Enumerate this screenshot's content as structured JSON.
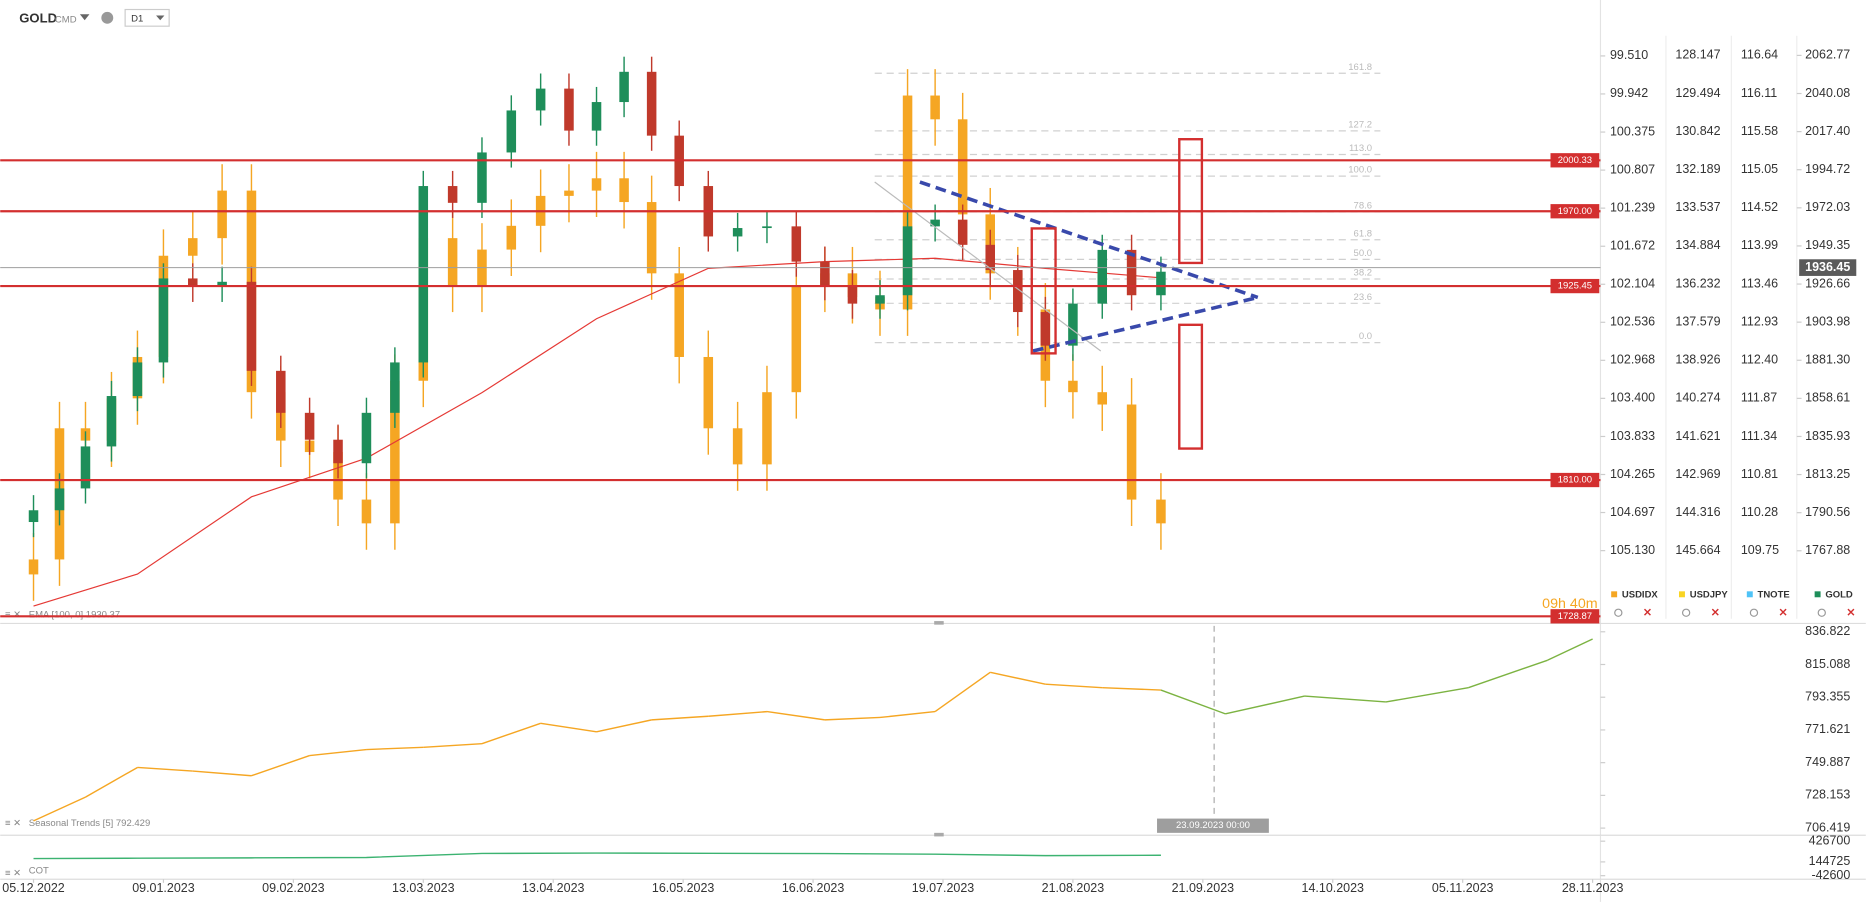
{
  "toolbar": {
    "symbol": "GOLD",
    "market": "CMD",
    "interval": "D1"
  },
  "chart_data": [
    {
      "type": "candlestick",
      "x": [
        "2022-12-05",
        "2022-12-12",
        "2022-12-19",
        "2022-12-26",
        "2023-01-02",
        "2023-01-09",
        "2023-01-16",
        "2023-01-23",
        "2023-01-30",
        "2023-02-06",
        "2023-02-13",
        "2023-02-20",
        "2023-02-27",
        "2023-03-06",
        "2023-03-13",
        "2023-03-20",
        "2023-03-27",
        "2023-04-03",
        "2023-04-10",
        "2023-04-17",
        "2023-04-24",
        "2023-05-01",
        "2023-05-08",
        "2023-05-15",
        "2023-05-22",
        "2023-05-29",
        "2023-06-05",
        "2023-06-12",
        "2023-06-19",
        "2023-06-26",
        "2023-07-03",
        "2023-07-10",
        "2023-07-17",
        "2023-07-24",
        "2023-07-31",
        "2023-08-07",
        "2023-08-14",
        "2023-08-21",
        "2023-08-28",
        "2023-09-04",
        "2023-09-11"
      ],
      "series": [
        {
          "name": "USDIDX",
          "axis": "y2",
          "up_color": "#f5a623",
          "down_color": "#f5a623",
          "open": [
            105.4,
            105.23,
            103.74,
            103.88,
            103.4,
            102.93,
            101.78,
            101.58,
            101.04,
            103.33,
            103.88,
            104.01,
            104.55,
            104.82,
            103.2,
            101.58,
            102.12,
            101.71,
            101.44,
            101.1,
            101.04,
            100.9,
            101.17,
            101.98,
            102.93,
            103.74,
            104.15,
            103.33,
            102.12,
            101.98,
            102.25,
            102.39,
            99.96,
            100.23,
            101.31,
            101.98,
            102.39,
            103.2,
            103.33,
            103.47,
            104.55
          ],
          "high": [
            105.7,
            105.53,
            104.18,
            104.18,
            103.7,
            103.23,
            102.08,
            101.88,
            103.63,
            104.18,
            104.31,
            104.85,
            105.12,
            105.12,
            103.5,
            102.42,
            102.42,
            102.01,
            101.74,
            101.4,
            101.34,
            101.47,
            102.28,
            103.23,
            104.04,
            104.45,
            104.45,
            103.63,
            102.42,
            102.55,
            102.69,
            102.69,
            100.53,
            101.61,
            102.28,
            102.69,
            103.5,
            103.63,
            103.77,
            104.85,
            105.12
          ],
          "low": [
            104.93,
            103.44,
            103.44,
            103.1,
            102.63,
            101.48,
            101.28,
            100.74,
            100.74,
            103.03,
            103.58,
            103.71,
            104.25,
            102.9,
            101.28,
            101.28,
            101.41,
            101.14,
            100.8,
            100.74,
            100.6,
            100.6,
            100.87,
            101.68,
            102.63,
            103.44,
            103.03,
            101.82,
            101.68,
            101.68,
            101.95,
            99.66,
            99.66,
            99.93,
            101.01,
            101.68,
            102.09,
            102.9,
            103.03,
            103.17,
            104.25
          ],
          "close": [
            105.23,
            103.74,
            103.88,
            103.4,
            102.93,
            101.78,
            101.58,
            101.04,
            103.33,
            103.88,
            104.01,
            104.55,
            104.82,
            103.2,
            101.58,
            102.12,
            101.71,
            101.44,
            101.1,
            101.04,
            100.9,
            101.17,
            101.98,
            102.93,
            103.74,
            104.15,
            103.33,
            102.12,
            101.98,
            102.25,
            102.39,
            99.96,
            100.23,
            101.31,
            101.98,
            102.39,
            103.2,
            103.33,
            103.47,
            104.55,
            104.82
          ]
        },
        {
          "name": "GOLD",
          "up_color": "#1e8e5a",
          "down_color": "#c0392b",
          "open": [
            1785,
            1792,
            1805,
            1830,
            1860,
            1880,
            1930,
            1925,
            1928,
            1875,
            1850,
            1834,
            1820,
            1850,
            1880,
            1985,
            1975,
            2005,
            2030,
            2043,
            2018,
            2035,
            2053,
            2015,
            1985,
            1955,
            1960,
            1961,
            1940,
            1926,
            1915,
            1920,
            1961,
            1965,
            1950,
            1935,
            1910,
            1890,
            1915,
            1947,
            1920
          ],
          "high": [
            1801,
            1814,
            1839,
            1869,
            1889,
            1939,
            1939,
            1937,
            1937,
            1884,
            1859,
            1843,
            1859,
            1889,
            1994,
            1994,
            2014,
            2039,
            2052,
            2052,
            2044,
            2062,
            2062,
            2024,
            1994,
            1969,
            1970,
            1970,
            1949,
            1935,
            1929,
            1970,
            1974,
            1974,
            1959,
            1944,
            1919,
            1924,
            1956,
            1956,
            1943
          ],
          "low": [
            1776,
            1783,
            1796,
            1821,
            1851,
            1871,
            1916,
            1916,
            1866,
            1841,
            1825,
            1811,
            1811,
            1841,
            1871,
            1966,
            1966,
            1996,
            2021,
            2009,
            2009,
            2026,
            2006,
            1976,
            1946,
            1946,
            1951,
            1931,
            1917,
            1906,
            1906,
            1911,
            1952,
            1941,
            1926,
            1901,
            1881,
            1881,
            1906,
            1911,
            1911
          ],
          "close": [
            1792,
            1805,
            1830,
            1860,
            1880,
            1930,
            1925,
            1928,
            1875,
            1850,
            1834,
            1820,
            1850,
            1880,
            1985,
            1975,
            2005,
            2030,
            2043,
            2018,
            2035,
            2053,
            2015,
            1985,
            1955,
            1960,
            1961,
            1940,
            1926,
            1915,
            1920,
            1961,
            1965,
            1950,
            1935,
            1910,
            1890,
            1915,
            1947,
            1920,
            1934
          ]
        }
      ],
      "ylim": [
        1728.87,
        2083
      ],
      "yticks": [
        2062.77,
        2040.08,
        {
          "value": 2017.4,
          "label": "2017.40"
        },
        1994.72,
        1972.03,
        1949.35,
        1926.66,
        1903.98,
        {
          "value": 1881.3,
          "label": "1881.30"
        },
        1858.61,
        1835.93,
        1813.25,
        1790.56,
        1767.88
      ],
      "y2lim": [
        99.118,
        105.876
      ],
      "y2_inverted": true,
      "y2ticks": [
        {
          "value": 99.51,
          "label": "99.510"
        },
        99.942,
        100.375,
        100.807,
        101.239,
        101.672,
        102.104,
        102.536,
        102.968,
        {
          "value": 103.4,
          "label": "103.400"
        },
        103.833,
        104.265,
        104.697,
        {
          "value": 105.13,
          "label": "105.130"
        }
      ],
      "xticks": [
        {
          "value": "2022-12-05",
          "label": "05.12.2022"
        },
        {
          "value": "2023-01-09",
          "label": "09.01.2023"
        },
        {
          "value": "2023-02-09",
          "label": "09.02.2023"
        },
        {
          "value": "2023-03-13",
          "label": "13.03.2023"
        },
        {
          "value": "2023-04-13",
          "label": "13.04.2023"
        },
        {
          "value": "2023-05-16",
          "label": "16.05.2023"
        },
        {
          "value": "2023-06-16",
          "label": "16.06.2023"
        },
        {
          "value": "2023-07-19",
          "label": "19.07.2023"
        },
        {
          "value": "2023-08-21",
          "label": "21.08.2023"
        },
        {
          "value": "2023-09-21",
          "label": "21.09.2023"
        },
        {
          "value": "2023-10-14",
          "label": "14.10.2023"
        },
        {
          "value": "2023-11-05",
          "label": "05.11.2023"
        },
        {
          "value": "2023-11-28",
          "label": "28.11.2023"
        }
      ],
      "lines": [
        {
          "name": "EMA [100, 0] 1930.37",
          "color": "#e53935",
          "x": [
            "2022-12-05",
            "2023-01-02",
            "2023-01-30",
            "2023-02-27",
            "2023-03-27",
            "2023-04-24",
            "2023-05-22",
            "2023-06-19",
            "2023-07-17",
            "2023-08-14",
            "2023-09-11"
          ],
          "values": [
            1735,
            1754,
            1800,
            1823,
            1862,
            1906,
            1936,
            1940,
            1942,
            1936,
            1930.37
          ]
        }
      ],
      "levels": [
        2000.33,
        {
          "value": 1970,
          "label": "1970.00"
        },
        1925.45,
        {
          "value": 1810,
          "label": "1810.00"
        },
        1728.87
      ],
      "level_color": "#d32f2f",
      "current": 1936.45,
      "fibonacci": {
        "low": 1891.8,
        "high": 1990.9,
        "levels": [
          161.8,
          127.2,
          {
            "value": 113,
            "label": "113.0"
          },
          {
            "value": 100,
            "label": "100.0"
          },
          78.6,
          61.8,
          {
            "value": 50,
            "label": "50.0"
          },
          38.2,
          23.6,
          {
            "value": 0,
            "label": "0.0"
          }
        ]
      },
      "timer": "09h 40m"
    },
    {
      "type": "line",
      "x": [
        "2022-12-05",
        "2022-12-19",
        "2023-01-02",
        "2023-01-16",
        "2023-01-30",
        "2023-02-13",
        "2023-02-27",
        "2023-03-13",
        "2023-03-27",
        "2023-04-10",
        "2023-04-24",
        "2023-05-08",
        "2023-05-22",
        "2023-06-05",
        "2023-06-19",
        "2023-07-03",
        "2023-07-17",
        "2023-07-31",
        "2023-08-14",
        "2023-08-28",
        "2023-09-11",
        "2023-09-25",
        "2023-10-09",
        "2023-10-23",
        "2023-11-06",
        "2023-11-20",
        "2023-11-28"
      ],
      "series": [
        {
          "name": "Seasonal  Trends [5] 792.429",
          "colors": [
            "#f5a623",
            "#7cb342"
          ],
          "values": [
            711.2,
            727,
            746.7,
            744.3,
            741.2,
            754.6,
            758.6,
            760.1,
            762.5,
            776,
            770.4,
            778.3,
            780.7,
            783.8,
            778.3,
            779.9,
            783.8,
            809.9,
            802,
            799.7,
            798.1,
            782.3,
            794.1,
            790.2,
            799.7,
            817.9,
            832
          ]
        }
      ],
      "split_x": "2023-09-23",
      "marker_label": "23.09.2023 00:00",
      "ylim": [
        706.419,
        836.822
      ],
      "yticks": [
        836.822,
        815.088,
        793.355,
        771.621,
        749.887,
        728.153,
        706.419
      ]
    },
    {
      "type": "line",
      "x": [
        "2022-12-05",
        "2023-01-02",
        "2023-01-30",
        "2023-02-27",
        "2023-03-27",
        "2023-04-24",
        "2023-05-22",
        "2023-06-19",
        "2023-07-17",
        "2023-08-14",
        "2023-09-11"
      ],
      "series": [
        {
          "name": "COT",
          "color": "#3cb371",
          "values": [
            190000,
            195000,
            200000,
            205000,
            260000,
            265000,
            262000,
            258000,
            250000,
            230000,
            235000
          ]
        }
      ],
      "ylim": [
        -42600,
        426700
      ],
      "yticks": [
        426700,
        144725,
        -42600
      ]
    }
  ],
  "price_columns": [
    {
      "name": "USDJPY",
      "color": "#f9d423",
      "labels": [
        "128.147",
        "129.494",
        "130.842",
        "132.189",
        "133.537",
        "134.884",
        "136.232",
        "137.579",
        "138.926",
        "140.274",
        "141.621",
        "142.969",
        "144.316",
        "145.664"
      ]
    },
    {
      "name": "TNOTE",
      "color": "#4fc3f7",
      "labels": [
        "116.64",
        "116.11",
        "115.58",
        "115.05",
        "114.52",
        "113.99",
        "113.46",
        "112.93",
        "112.40",
        "111.87",
        "111.34",
        "110.81",
        "110.28",
        "109.75"
      ]
    }
  ]
}
